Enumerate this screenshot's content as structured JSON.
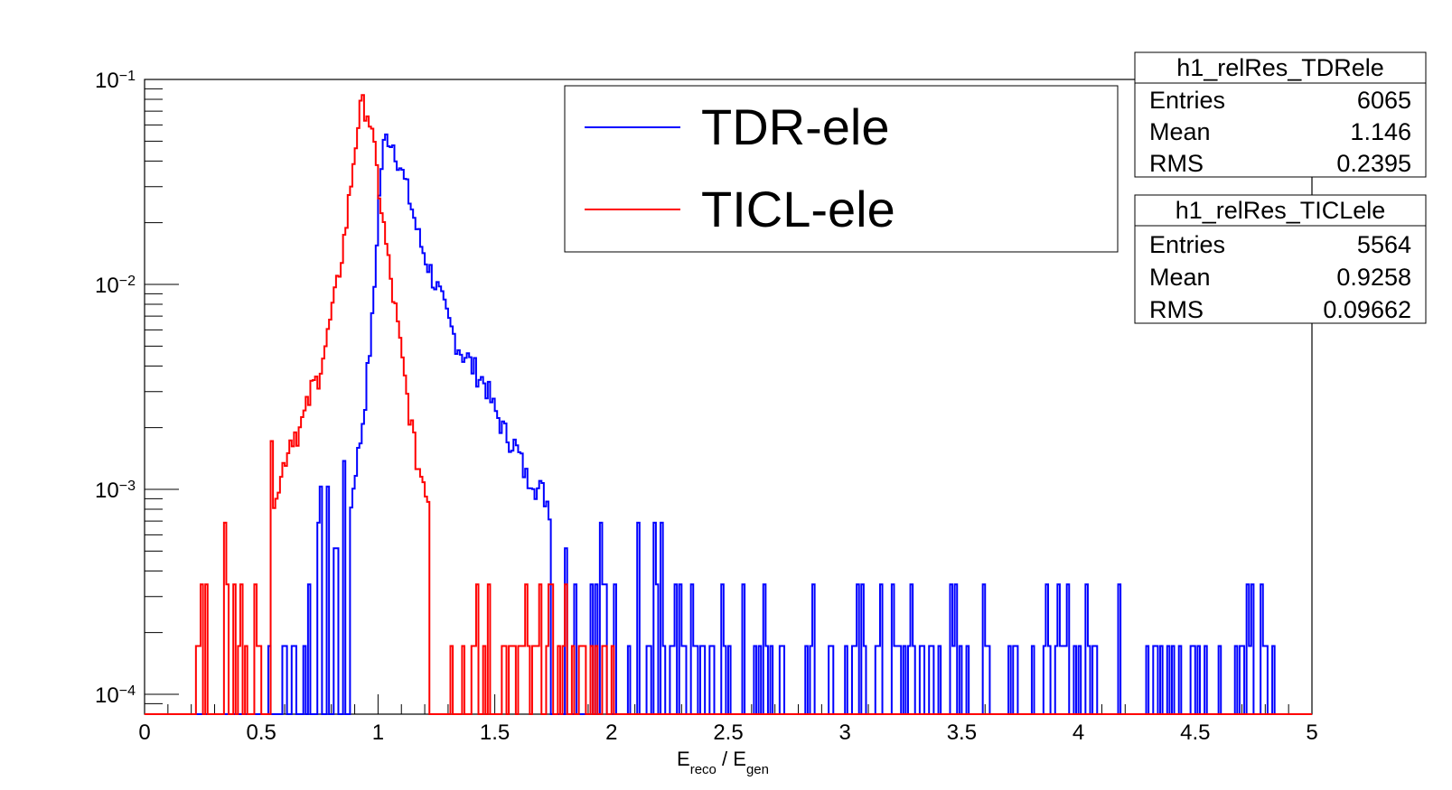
{
  "chart_data": {
    "type": "line",
    "title": "",
    "xlabel": {
      "base": "E",
      "sub": "reco",
      "sep": " / ",
      "base2": "E",
      "sub2": "gen"
    },
    "xlim": [
      0,
      5
    ],
    "ylim_log": [
      8e-05,
      0.1
    ],
    "y_scale": "log",
    "x_ticks": [
      "0",
      "0.5",
      "1",
      "1.5",
      "2",
      "2.5",
      "3",
      "3.5",
      "4",
      "4.5",
      "5"
    ],
    "y_ticks": [
      {
        "value": 0.1,
        "base": "10",
        "exp": "−1"
      },
      {
        "value": 0.01,
        "base": "10",
        "exp": "−2"
      },
      {
        "value": 0.001,
        "base": "10",
        "exp": "−3"
      },
      {
        "value": 0.0001,
        "base": "10",
        "exp": "−4"
      }
    ],
    "grid": false,
    "legend_placement": "top-center-right",
    "series": [
      {
        "name": "TDR-ele",
        "color": "#0000ff",
        "peaks": [
          [
            0.3,
            0
          ],
          [
            0.5,
            0
          ],
          [
            0.55,
            0.00017
          ],
          [
            0.6,
            0.00017
          ],
          [
            0.65,
            0.00017
          ],
          [
            0.72,
            0.00035
          ],
          [
            0.78,
            0.00052
          ],
          [
            0.82,
            0.00052
          ],
          [
            0.86,
            0.0007
          ],
          [
            0.88,
            0.0007
          ],
          [
            0.9,
            0.00122
          ],
          [
            0.92,
            0.00157
          ],
          [
            0.94,
            0.00244
          ],
          [
            0.96,
            0.0042
          ],
          [
            0.98,
            0.0075
          ],
          [
            1.0,
            0.022
          ],
          [
            1.02,
            0.045
          ],
          [
            1.04,
            0.054
          ],
          [
            1.06,
            0.05
          ],
          [
            1.08,
            0.044
          ],
          [
            1.1,
            0.036
          ],
          [
            1.12,
            0.03
          ],
          [
            1.14,
            0.025
          ],
          [
            1.16,
            0.02
          ],
          [
            1.18,
            0.016
          ],
          [
            1.2,
            0.014
          ],
          [
            1.22,
            0.012
          ],
          [
            1.24,
            0.0105
          ],
          [
            1.26,
            0.0092
          ],
          [
            1.28,
            0.0078
          ],
          [
            1.3,
            0.0066
          ],
          [
            1.32,
            0.0058
          ],
          [
            1.34,
            0.0052
          ],
          [
            1.36,
            0.0046
          ],
          [
            1.38,
            0.0045
          ],
          [
            1.4,
            0.004
          ],
          [
            1.42,
            0.0038
          ],
          [
            1.44,
            0.0035
          ],
          [
            1.46,
            0.0033
          ],
          [
            1.48,
            0.0028
          ],
          [
            1.5,
            0.0024
          ],
          [
            1.52,
            0.0022
          ],
          [
            1.54,
            0.0019
          ],
          [
            1.56,
            0.0018
          ],
          [
            1.58,
            0.0017
          ],
          [
            1.6,
            0.0015
          ],
          [
            1.62,
            0.0013
          ],
          [
            1.64,
            0.0011
          ],
          [
            1.66,
            0.0012
          ],
          [
            1.68,
            0.001
          ],
          [
            1.7,
            0.001
          ],
          [
            1.72,
            0.0009
          ],
          [
            1.74,
            0.0008
          ],
          [
            1.76,
            0.00065
          ],
          [
            1.78,
            0.0006
          ],
          [
            1.8,
            0.0005
          ],
          [
            1.82,
            0.00045
          ],
          [
            1.84,
            0.0004
          ],
          [
            1.86,
            0.00035
          ],
          [
            1.88,
            0.0004
          ],
          [
            1.9,
            0.00035
          ],
          [
            1.92,
            0.00035
          ],
          [
            1.94,
            0.00035
          ],
          [
            1.96,
            0.00035
          ],
          [
            1.98,
            0.0003
          ],
          [
            2.0,
            0.00035
          ],
          [
            2.05,
            0.00017
          ],
          [
            2.1,
            0.00035
          ],
          [
            2.15,
            0.00017
          ],
          [
            2.2,
            0.00035
          ],
          [
            2.25,
            0.00017
          ],
          [
            2.3,
            0.00017
          ],
          [
            2.4,
            0.00017
          ],
          [
            2.5,
            0.00017
          ],
          [
            2.55,
            0.00017
          ],
          [
            2.6,
            0.00017
          ],
          [
            2.65,
            0.00017
          ],
          [
            2.75,
            0.00017
          ],
          [
            2.8,
            0.00035
          ],
          [
            2.85,
            0.00017
          ],
          [
            2.9,
            0.00035
          ],
          [
            2.95,
            0.00017
          ],
          [
            3.0,
            0.00017
          ],
          [
            3.15,
            0.00017
          ],
          [
            3.2,
            0.00017
          ],
          [
            3.4,
            0.00017
          ],
          [
            3.5,
            0.00017
          ],
          [
            3.7,
            0.00017
          ],
          [
            4.0,
            0.0001
          ],
          [
            4.12,
            0.00017
          ],
          [
            4.26,
            0.00017
          ],
          [
            4.7,
            0.00017
          ],
          [
            5.0,
            0
          ]
        ]
      },
      {
        "name": "TICL-ele",
        "color": "#ff0000",
        "peaks": [
          [
            0.2,
            0
          ],
          [
            0.23,
            0.00017
          ],
          [
            0.25,
            0.00035
          ],
          [
            0.3,
            0.00017
          ],
          [
            0.36,
            0.00035
          ],
          [
            0.4,
            0.00017
          ],
          [
            0.42,
            0.00035
          ],
          [
            0.45,
            0.00017
          ],
          [
            0.47,
            0.00035
          ],
          [
            0.5,
            0.00017
          ],
          [
            0.52,
            0.0003
          ],
          [
            0.54,
            0.0007
          ],
          [
            0.56,
            0.00105
          ],
          [
            0.58,
            0.00105
          ],
          [
            0.6,
            0.0014
          ],
          [
            0.62,
            0.0017
          ],
          [
            0.64,
            0.0019
          ],
          [
            0.66,
            0.0019
          ],
          [
            0.68,
            0.0022
          ],
          [
            0.7,
            0.0026
          ],
          [
            0.72,
            0.0032
          ],
          [
            0.74,
            0.0034
          ],
          [
            0.76,
            0.0044
          ],
          [
            0.78,
            0.0052
          ],
          [
            0.8,
            0.0071
          ],
          [
            0.82,
            0.009
          ],
          [
            0.84,
            0.013
          ],
          [
            0.86,
            0.018
          ],
          [
            0.88,
            0.028
          ],
          [
            0.9,
            0.045
          ],
          [
            0.92,
            0.068
          ],
          [
            0.94,
            0.076
          ],
          [
            0.96,
            0.068
          ],
          [
            0.98,
            0.048
          ],
          [
            1.0,
            0.032
          ],
          [
            1.02,
            0.021
          ],
          [
            1.04,
            0.014
          ],
          [
            1.06,
            0.0095
          ],
          [
            1.08,
            0.0068
          ],
          [
            1.1,
            0.0045
          ],
          [
            1.12,
            0.0031
          ],
          [
            1.14,
            0.0022
          ],
          [
            1.16,
            0.0015
          ],
          [
            1.18,
            0.0012
          ],
          [
            1.2,
            0.0011
          ],
          [
            1.22,
            0.00085
          ],
          [
            1.24,
            0.0006
          ],
          [
            1.26,
            0.00035
          ],
          [
            1.28,
            0.00017
          ],
          [
            1.3,
            0.00035
          ],
          [
            1.32,
            0.00017
          ],
          [
            1.36,
            0.00017
          ],
          [
            1.4,
            0.00017
          ],
          [
            1.45,
            0.00017
          ],
          [
            1.55,
            0.00017
          ],
          [
            1.7,
            0.00017
          ],
          [
            1.8,
            0.00017
          ],
          [
            1.9,
            0.00017
          ],
          [
            2.0,
            0.00017
          ],
          [
            2.05,
            0
          ]
        ]
      }
    ],
    "legend": [
      {
        "label": "TDR-ele",
        "color": "#0000ff"
      },
      {
        "label": "TICL-ele",
        "color": "#ff0000"
      }
    ],
    "stats_boxes": [
      {
        "title": "h1_relRes_TDRele",
        "rows": [
          {
            "label": "Entries",
            "value": "6065"
          },
          {
            "label": "Mean",
            "value": "1.146"
          },
          {
            "label": "RMS",
            "value": "0.2395"
          }
        ]
      },
      {
        "title": "h1_relRes_TICLele",
        "rows": [
          {
            "label": "Entries",
            "value": "5564"
          },
          {
            "label": "Mean",
            "value": "0.9258"
          },
          {
            "label": "RMS",
            "value": "0.09662"
          }
        ]
      }
    ]
  }
}
